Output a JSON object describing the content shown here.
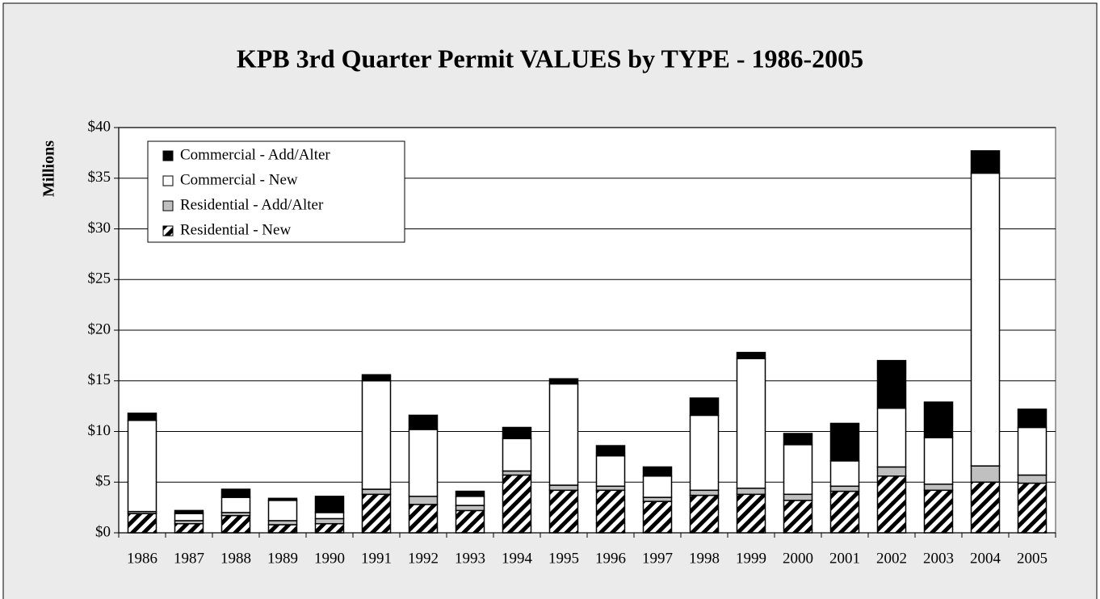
{
  "chart_data": {
    "type": "stacked_bar",
    "title": "KPB 3rd Quarter Permit VALUES by TYPE - 1986-2005",
    "y_label": "Millions",
    "categories": [
      "1986",
      "1987",
      "1988",
      "1989",
      "1990",
      "1991",
      "1992",
      "1993",
      "1994",
      "1995",
      "1996",
      "1997",
      "1998",
      "1999",
      "2000",
      "2001",
      "2002",
      "2003",
      "2004",
      "2005"
    ],
    "series": [
      {
        "name": "Residential - New",
        "color": "#000000",
        "hatch": true,
        "values": [
          1.9,
          0.9,
          1.7,
          0.8,
          0.9,
          3.8,
          2.8,
          2.2,
          5.7,
          4.2,
          4.2,
          3.1,
          3.7,
          3.8,
          3.2,
          4.1,
          5.6,
          4.2,
          5.0,
          4.9
        ]
      },
      {
        "name": "Residential - Add/Alter",
        "color": "#c0c0c0",
        "values": [
          0.2,
          0.3,
          0.3,
          0.4,
          0.5,
          0.5,
          0.8,
          0.5,
          0.4,
          0.5,
          0.4,
          0.4,
          0.5,
          0.6,
          0.6,
          0.5,
          0.9,
          0.6,
          1.6,
          0.8
        ]
      },
      {
        "name": "Commercial - New",
        "color": "#ffffff",
        "values": [
          9.0,
          0.7,
          1.5,
          2.0,
          0.6,
          10.7,
          6.6,
          0.9,
          3.2,
          10.0,
          3.0,
          2.1,
          7.4,
          12.8,
          4.9,
          2.5,
          5.8,
          4.6,
          28.9,
          4.7
        ]
      },
      {
        "name": "Commercial - Add/Alter",
        "color": "#000000",
        "values": [
          0.7,
          0.3,
          0.8,
          0.2,
          1.6,
          0.6,
          1.4,
          0.5,
          1.1,
          0.5,
          1.0,
          0.9,
          1.7,
          0.6,
          1.1,
          3.7,
          4.7,
          3.5,
          2.2,
          1.8
        ]
      }
    ],
    "ylim": [
      0,
      40
    ],
    "yticks": [
      {
        "value": 0,
        "label": "$0"
      },
      {
        "value": 5,
        "label": "$5"
      },
      {
        "value": 10,
        "label": "$10"
      },
      {
        "value": 15,
        "label": "$15"
      },
      {
        "value": 20,
        "label": "$20"
      },
      {
        "value": 25,
        "label": "$25"
      },
      {
        "value": 30,
        "label": "$30"
      },
      {
        "value": 35,
        "label": "$35"
      },
      {
        "value": 40,
        "label": "$40"
      }
    ],
    "grid": true,
    "legend": "top-left"
  }
}
